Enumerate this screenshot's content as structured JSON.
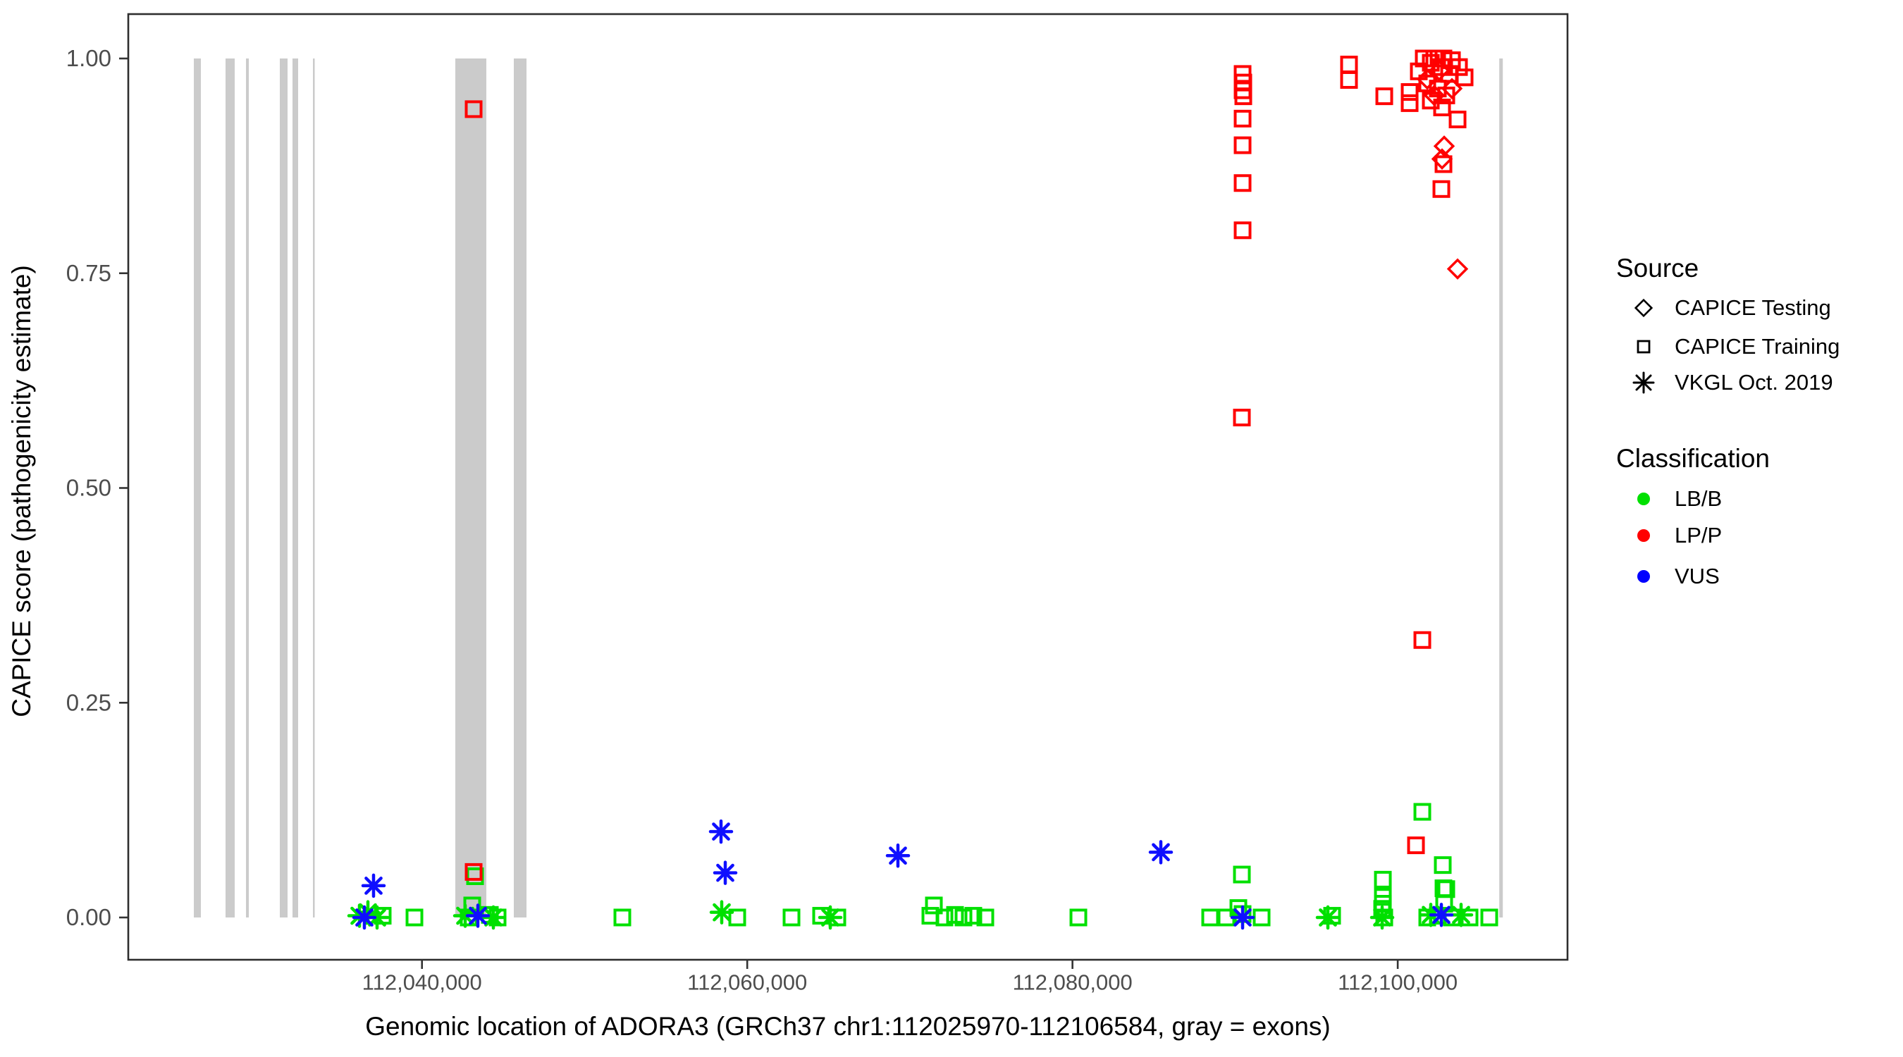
{
  "y_axis": {
    "title": "CAPICE score (pathogenicity estimate)",
    "ticks": [
      {
        "value": 0.0,
        "label": "0.00"
      },
      {
        "value": 0.25,
        "label": "0.25"
      },
      {
        "value": 0.5,
        "label": "0.50"
      },
      {
        "value": 0.75,
        "label": "0.75"
      },
      {
        "value": 1.0,
        "label": "1.00"
      }
    ]
  },
  "x_axis": {
    "title": "Genomic location of ADORA3 (GRCh37 chr1:112025970-112106584, gray = exons)",
    "ticks": [
      {
        "value": 112040000,
        "label": "112,040,000"
      },
      {
        "value": 112060000,
        "label": "112,060,000"
      },
      {
        "value": 112080000,
        "label": "112,080,000"
      },
      {
        "value": 112100000,
        "label": "112,100,000"
      }
    ]
  },
  "legend": {
    "source": {
      "title": "Source",
      "items": [
        {
          "label": "CAPICE Testing",
          "marker": "diamond"
        },
        {
          "label": "CAPICE Training",
          "marker": "square"
        },
        {
          "label": "VKGL Oct. 2019",
          "marker": "asterisk"
        }
      ]
    },
    "classification": {
      "title": "Classification",
      "items": [
        {
          "label": "LB/B",
          "color": "#00E000"
        },
        {
          "label": "LP/P",
          "color": "#FF0000"
        },
        {
          "label": "VUS",
          "color": "#0000FF"
        }
      ]
    }
  },
  "colors": {
    "LB/B": "#00E000",
    "LP/P": "#FF0000",
    "VUS": "#0F0FFF",
    "exon": "#CBCBCB",
    "panel_border": "#2E2E2E",
    "tick_text": "#4D4D4D"
  },
  "chart_data": {
    "type": "scatter",
    "title": "",
    "xlabel": "Genomic location of ADORA3 (GRCh37 chr1:112025970-112106584, gray = exons)",
    "ylabel": "CAPICE score (pathogenicity estimate)",
    "x_domain": [
      112021940,
      112110440
    ],
    "y_domain": [
      0.0,
      1.0
    ],
    "grid": false,
    "legend_position": "right",
    "gene_range": [
      112025970,
      112106584
    ],
    "exons_bp": [
      [
        112025971,
        112026404
      ],
      [
        112027921,
        112028485
      ],
      [
        112029178,
        112029351
      ],
      [
        112031258,
        112031735
      ],
      [
        112032038,
        112032385
      ],
      [
        112033295,
        112033382
      ],
      [
        112042050,
        112043957
      ],
      [
        112045647,
        112046427
      ],
      [
        112106244,
        112106461
      ]
    ],
    "points": [
      [
        112036155,
        0.002,
        "ast",
        "LB/B"
      ],
      [
        112036675,
        0.006,
        "ast",
        "LB/B"
      ],
      [
        112036458,
        0.0,
        "ast",
        "VUS"
      ],
      [
        112037239,
        0.0,
        "ast",
        "LB/B"
      ],
      [
        112037585,
        0.002,
        "sq",
        "LB/B"
      ],
      [
        112037022,
        0.037,
        "ast",
        "VUS"
      ],
      [
        112039537,
        0.0,
        "sq",
        "LB/B"
      ],
      [
        112043177,
        0.941,
        "sq",
        "LP/P"
      ],
      [
        112043177,
        0.053,
        "sq",
        "LP/P"
      ],
      [
        112043264,
        0.048,
        "sq",
        "LB/B"
      ],
      [
        112043090,
        0.014,
        "sq",
        "LB/B"
      ],
      [
        112042657,
        0.002,
        "ast",
        "LB/B"
      ],
      [
        112042873,
        0.0,
        "sq",
        "LB/B"
      ],
      [
        112043437,
        0.002,
        "ast",
        "VUS"
      ],
      [
        112044174,
        0.003,
        "sq",
        "LB/B"
      ],
      [
        112044650,
        0.0,
        "sq",
        "LB/B"
      ],
      [
        112044390,
        0.0,
        "ast",
        "LB/B"
      ],
      [
        112052321,
        0.0,
        "sq",
        "LB/B"
      ],
      [
        112058389,
        0.1,
        "ast",
        "VUS"
      ],
      [
        112058649,
        0.052,
        "ast",
        "VUS"
      ],
      [
        112058432,
        0.006,
        "ast",
        "LB/B"
      ],
      [
        112059386,
        0.0,
        "sq",
        "LB/B"
      ],
      [
        112062723,
        0.0,
        "sq",
        "LB/B"
      ],
      [
        112064543,
        0.002,
        "sq",
        "LB/B"
      ],
      [
        112065107,
        0.0,
        "ast",
        "LB/B"
      ],
      [
        112065540,
        0.0,
        "sq",
        "LB/B"
      ],
      [
        112071478,
        0.014,
        "sq",
        "LB/B"
      ],
      [
        112071261,
        0.002,
        "sq",
        "LB/B"
      ],
      [
        112072128,
        0.0,
        "sq",
        "LB/B"
      ],
      [
        112072778,
        0.003,
        "sq",
        "LB/B"
      ],
      [
        112073298,
        0.0,
        "sq",
        "LB/B"
      ],
      [
        112073905,
        0.002,
        "sq",
        "LB/B"
      ],
      [
        112074642,
        0.0,
        "sq",
        "LB/B"
      ],
      [
        112069267,
        0.072,
        "ast",
        "VUS"
      ],
      [
        112080363,
        0.0,
        "sq",
        "LB/B"
      ],
      [
        112085433,
        0.076,
        "ast",
        "VUS"
      ],
      [
        112088467,
        0.0,
        "sq",
        "LB/B"
      ],
      [
        112089464,
        0.0,
        "sq",
        "LB/B"
      ],
      [
        112090201,
        0.011,
        "sq",
        "LB/B"
      ],
      [
        112090461,
        0.004,
        "sq",
        "LB/B"
      ],
      [
        112090461,
        0.0,
        "ast",
        "VUS"
      ],
      [
        112091631,
        0.0,
        "sq",
        "LB/B"
      ],
      [
        112090417,
        0.05,
        "sq",
        "LB/B"
      ],
      [
        112090461,
        0.982,
        "sq",
        "LP/P"
      ],
      [
        112090504,
        0.972,
        "sq",
        "LP/P"
      ],
      [
        112090461,
        0.963,
        "sq",
        "LP/P"
      ],
      [
        112090504,
        0.956,
        "sq",
        "LP/P"
      ],
      [
        112090461,
        0.93,
        "sq",
        "LP/P"
      ],
      [
        112090461,
        0.899,
        "sq",
        "LP/P"
      ],
      [
        112090461,
        0.855,
        "sq",
        "LP/P"
      ],
      [
        112090461,
        0.8,
        "sq",
        "LP/P"
      ],
      [
        112090417,
        0.582,
        "sq",
        "LP/P"
      ],
      [
        112095705,
        0.0,
        "ast",
        "LB/B"
      ],
      [
        112095965,
        0.002,
        "sq",
        "LB/B"
      ],
      [
        112099086,
        0.044,
        "sq",
        "LB/B"
      ],
      [
        112099086,
        0.024,
        "sq",
        "LB/B"
      ],
      [
        112099086,
        0.016,
        "sq",
        "LB/B"
      ],
      [
        112099043,
        0.01,
        "sq",
        "LB/B"
      ],
      [
        112099043,
        0.0,
        "ast",
        "LB/B"
      ],
      [
        112099173,
        0.0,
        "sq",
        "LB/B"
      ],
      [
        112097005,
        0.993,
        "sq",
        "LP/P"
      ],
      [
        112097005,
        0.975,
        "sq",
        "LP/P"
      ],
      [
        112099173,
        0.956,
        "sq",
        "LP/P"
      ],
      [
        112100733,
        0.961,
        "sq",
        "LP/P"
      ],
      [
        112100733,
        0.948,
        "sq",
        "LP/P"
      ],
      [
        112101600,
        1.0,
        "sq",
        "LP/P"
      ],
      [
        112102250,
        1.0,
        "sq",
        "LP/P"
      ],
      [
        112102813,
        1.0,
        "sq",
        "LP/P"
      ],
      [
        112103333,
        0.998,
        "sq",
        "LP/P"
      ],
      [
        112102033,
        0.995,
        "sq",
        "LP/P"
      ],
      [
        112102683,
        0.99,
        "sq",
        "LP/P"
      ],
      [
        112101296,
        0.985,
        "sq",
        "LP/P"
      ],
      [
        112103160,
        0.982,
        "sq",
        "LP/P"
      ],
      [
        112103766,
        0.99,
        "sq",
        "LP/P"
      ],
      [
        112104113,
        0.978,
        "sq",
        "LP/P"
      ],
      [
        112101816,
        0.971,
        "sq",
        "LP/P"
      ],
      [
        112102466,
        0.965,
        "sq",
        "LP/P"
      ],
      [
        112102986,
        0.957,
        "sq",
        "LP/P"
      ],
      [
        112102033,
        0.951,
        "sq",
        "LP/P"
      ],
      [
        112102726,
        0.943,
        "sq",
        "LP/P"
      ],
      [
        112103680,
        0.929,
        "sq",
        "LP/P"
      ],
      [
        112101816,
        0.976,
        "dia",
        "LP/P"
      ],
      [
        112102553,
        0.986,
        "dia",
        "LP/P"
      ],
      [
        112103333,
        0.965,
        "dia",
        "LP/P"
      ],
      [
        112102250,
        0.957,
        "dia",
        "LP/P"
      ],
      [
        112102856,
        0.898,
        "dia",
        "LP/P"
      ],
      [
        112102726,
        0.883,
        "dia",
        "LP/P"
      ],
      [
        112102813,
        0.877,
        "sq",
        "LP/P"
      ],
      [
        112102683,
        0.848,
        "sq",
        "LP/P"
      ],
      [
        112103680,
        0.755,
        "dia",
        "LP/P"
      ],
      [
        112101513,
        0.323,
        "sq",
        "LP/P"
      ],
      [
        112101123,
        0.084,
        "sq",
        "LP/P"
      ],
      [
        112101513,
        0.123,
        "sq",
        "LB/B"
      ],
      [
        112102769,
        0.061,
        "sq",
        "LB/B"
      ],
      [
        112102813,
        0.034,
        "sq",
        "LB/B"
      ],
      [
        112102986,
        0.033,
        "sq",
        "LB/B"
      ],
      [
        112102856,
        0.016,
        "sq",
        "LB/B"
      ],
      [
        112102033,
        0.003,
        "ast",
        "LB/B"
      ],
      [
        112101816,
        0.0,
        "sq",
        "LB/B"
      ],
      [
        112102466,
        0.002,
        "sq",
        "LB/B"
      ],
      [
        112102683,
        0.003,
        "ast",
        "VUS"
      ],
      [
        112103896,
        0.003,
        "ast",
        "LB/B"
      ],
      [
        112103333,
        0.0,
        "sq",
        "LB/B"
      ],
      [
        112104416,
        0.0,
        "sq",
        "LB/B"
      ],
      [
        112105629,
        0.0,
        "sq",
        "LB/B"
      ]
    ]
  }
}
